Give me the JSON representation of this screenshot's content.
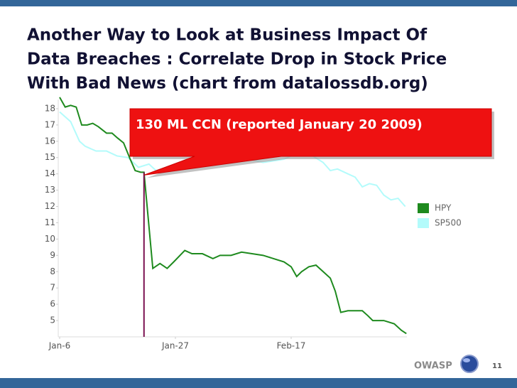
{
  "chart_data": {
    "type": "line",
    "title": [
      "Another Way to Look at Business Impact Of",
      "Data Breaches : Correlate Drop in Stock Price",
      "With  Bad News (chart from datalossdb.org)"
    ],
    "annotation": "130 ML CCN (reported January 20 2009)",
    "series": [
      {
        "name": "HPY",
        "color": "#1e8a1e",
        "x": [
          0,
          1,
          2,
          3,
          4,
          5,
          6,
          7,
          8.5,
          9.5,
          10.5,
          11.6,
          12.8,
          13.7,
          14.7,
          15.3,
          16.9,
          18.2,
          19.5,
          20.7,
          22.7,
          24,
          25.9,
          27.8,
          29.1,
          31.1,
          33,
          34.9,
          36.9,
          38.8,
          40.7,
          42,
          43,
          43.9,
          45.2,
          46.5,
          47.8,
          49.1,
          50,
          51,
          52.3,
          53.6,
          54.9,
          55.9,
          56.8,
          58.8,
          60.7,
          62,
          62.9
        ],
        "values": [
          18.7,
          18.1,
          18.2,
          18.1,
          17.0,
          17.0,
          17.1,
          16.9,
          16.5,
          16.5,
          16.2,
          15.9,
          14.9,
          14.2,
          14.1,
          14.1,
          8.2,
          8.5,
          8.2,
          8.6,
          9.3,
          9.1,
          9.1,
          8.8,
          9.0,
          9.0,
          9.2,
          9.1,
          9.0,
          8.8,
          8.6,
          8.3,
          7.7,
          8.0,
          8.3,
          8.4,
          8.0,
          7.6,
          6.8,
          5.5,
          5.6,
          5.6,
          5.6,
          5.3,
          5.0,
          5.0,
          4.8,
          4.4,
          4.2
        ]
      },
      {
        "name": "SP500",
        "color": "#b3fbfb",
        "x": [
          0,
          2,
          3.6,
          4.6,
          6.6,
          8.5,
          10.4,
          12.4,
          14.3,
          16.2,
          17.5,
          21.4,
          25.3,
          29.1,
          33,
          36.9,
          40.7,
          43.3,
          45.9,
          47.8,
          49.1,
          50.4,
          52.3,
          53.6,
          54.9,
          56.2,
          57.5,
          58.8,
          60.1,
          61.4,
          62.7
        ],
        "values": [
          17.8,
          17.2,
          16.0,
          15.7,
          15.4,
          15.4,
          15.1,
          15.0,
          14.4,
          14.6,
          14.2,
          14.6,
          14.9,
          14.9,
          15.0,
          14.7,
          14.9,
          15.3,
          15.1,
          14.7,
          14.2,
          14.3,
          14.0,
          13.8,
          13.2,
          13.4,
          13.3,
          12.7,
          12.4,
          12.5,
          12.0
        ]
      }
    ],
    "xlim": [
      0,
      63
    ],
    "xticks": [
      {
        "value": 0,
        "label": "Jan-6"
      },
      {
        "value": 21,
        "label": "Jan-27"
      },
      {
        "value": 42,
        "label": "Feb-17"
      }
    ],
    "ylim": [
      4,
      19
    ],
    "yticks": [
      5,
      6,
      7,
      8,
      9,
      10,
      11,
      12,
      13,
      14,
      15,
      16,
      17,
      18
    ],
    "grid": false
  },
  "footer": {
    "brand": "OWASP",
    "page": "11"
  }
}
